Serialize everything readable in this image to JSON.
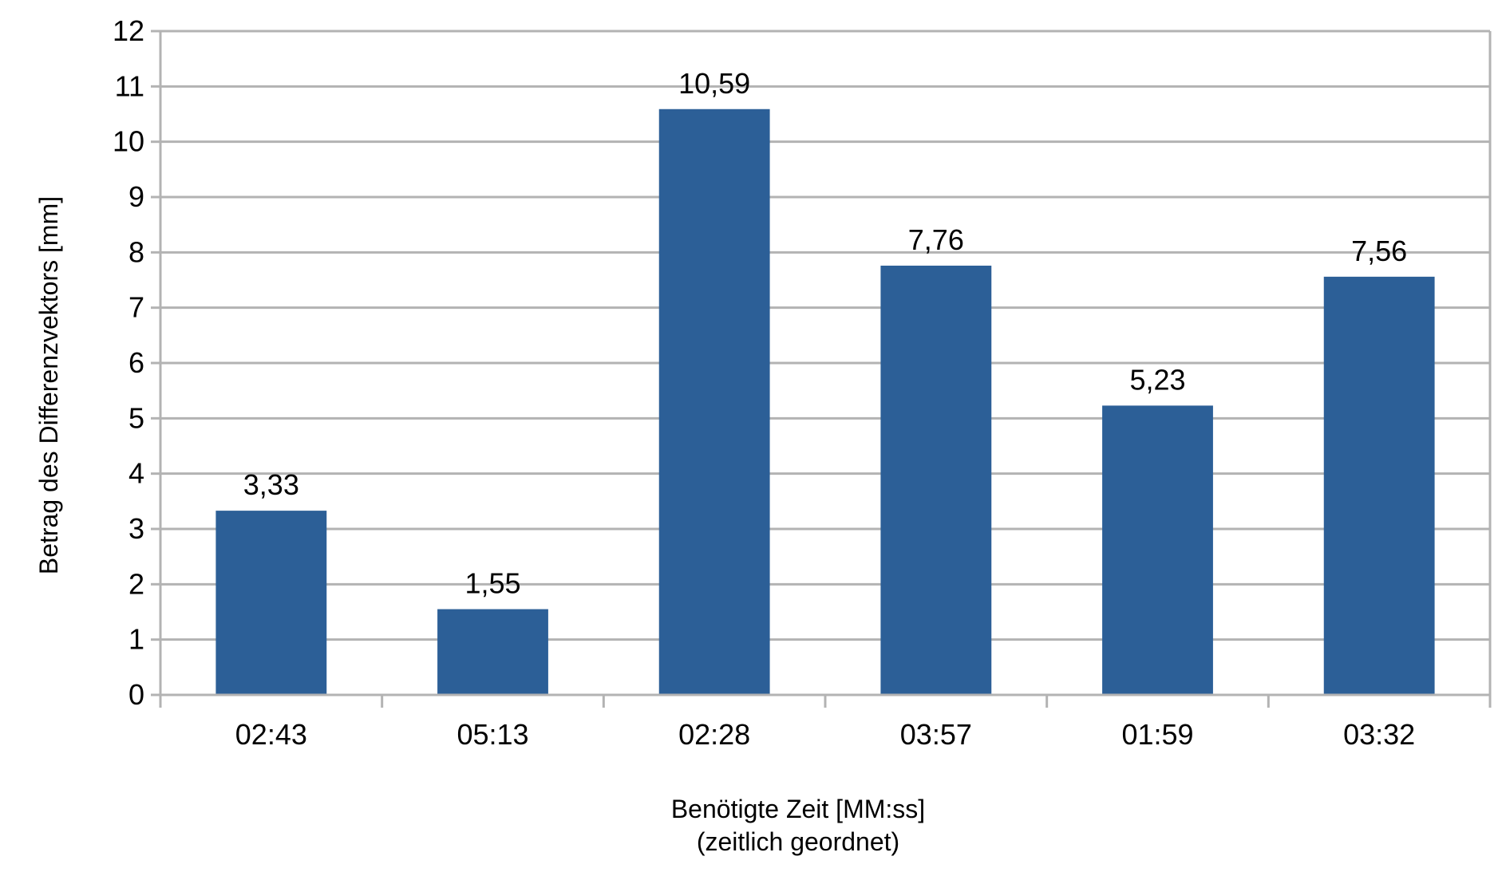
{
  "chart_data": {
    "type": "bar",
    "categories": [
      "02:43",
      "05:13",
      "02:28",
      "03:57",
      "01:59",
      "03:32"
    ],
    "values": [
      3.33,
      1.55,
      10.59,
      7.76,
      5.23,
      7.56
    ],
    "data_labels": [
      "3,33",
      "1,55",
      "10,59",
      "7,76",
      "5,23",
      "7,56"
    ],
    "yticks": [
      "0",
      "1",
      "2",
      "3",
      "4",
      "5",
      "6",
      "7",
      "8",
      "9",
      "10",
      "11",
      "12"
    ],
    "ylim": [
      0,
      12
    ],
    "ylabel": "Betrag des Differenzvektors [mm]",
    "xlabel_line1": "Benötigte Zeit [MM:ss]",
    "xlabel_line2": "(zeitlich geordnet)",
    "grid": true,
    "legend": "none",
    "colors": {
      "bar": "#2c5f97",
      "grid": "#b3b3b3"
    }
  }
}
